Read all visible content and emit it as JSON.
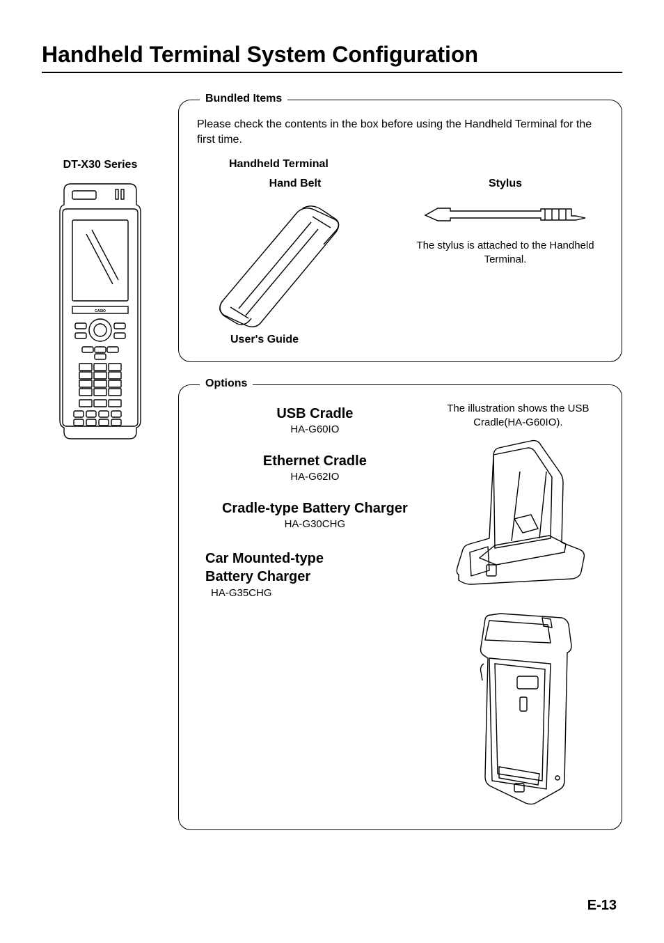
{
  "title": "Handheld Terminal System Configuration",
  "series_label": "DT-X30 Series",
  "bundle": {
    "legend": "Bundled Items",
    "description": "Please check the contents in the box before using the Handheld Terminal for the first time.",
    "terminal_label": "Handheld Terminal",
    "hand_belt_label": "Hand Belt",
    "stylus_label": "Stylus",
    "stylus_note": "The stylus is attached to the Handheld Terminal.",
    "users_guide_label": "User's Guide"
  },
  "options": {
    "legend": "Options",
    "cradle_note": "The illustration shows the USB Cradle(HA-G60IO).",
    "items": [
      {
        "title": "USB Cradle",
        "model": "HA-G60IO"
      },
      {
        "title": "Ethernet Cradle",
        "model": "HA-G62IO"
      },
      {
        "title": "Cradle-type Battery Charger",
        "model": "HA-G30CHG"
      },
      {
        "title": "Car Mounted-type Battery Charger",
        "model": "HA-G35CHG"
      }
    ]
  },
  "page_number": "E-13",
  "colors": {
    "text": "#000000",
    "bg": "#ffffff",
    "rule": "#000000",
    "border": "#000000"
  }
}
